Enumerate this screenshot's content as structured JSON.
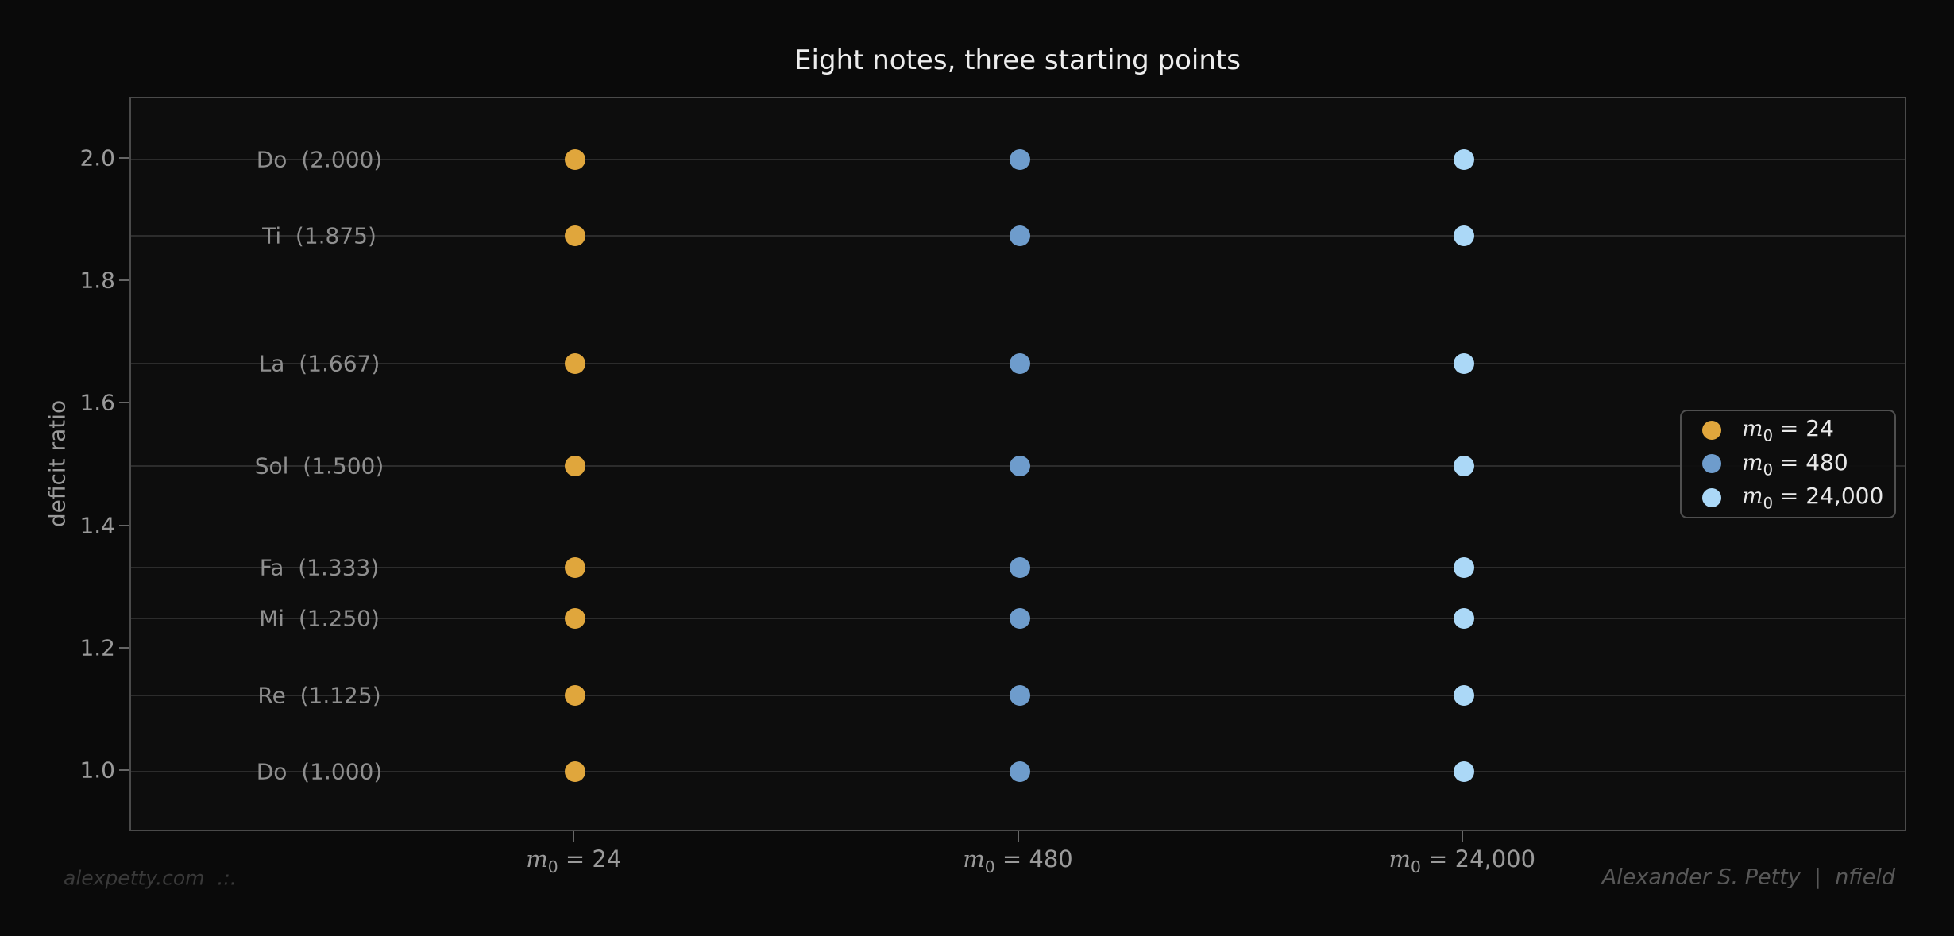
{
  "footer": {
    "left": "alexpetty.com  .:.",
    "right": "Alexander S. Petty  |  nfield"
  },
  "colors": {
    "background": "#0a0a0a",
    "axes_background": "#0d0d0d",
    "frame": "#4a4a4a",
    "gridline": "#2c2c2c",
    "tick_label": "#9a9a9a",
    "note_label": "#8f8f8f",
    "title_text": "#ededed",
    "legend_text": "#e8e8e8",
    "series_m0_24": "#E0A63C",
    "series_m0_480": "#6E9CCC",
    "series_m0_24000": "#ABD8F7"
  },
  "chart_data": {
    "type": "scatter",
    "title": "Eight notes, three starting points",
    "xlabel": "",
    "ylabel": "deficit ratio",
    "ylim": [
      0.9,
      2.1
    ],
    "grid": "horizontal lines only at note ratios",
    "legend_position": "center right",
    "yticks": [
      {
        "value": 1.0,
        "label": "1.0"
      },
      {
        "value": 1.2,
        "label": "1.2"
      },
      {
        "value": 1.4,
        "label": "1.4"
      },
      {
        "value": 1.6,
        "label": "1.6"
      },
      {
        "value": 1.8,
        "label": "1.8"
      },
      {
        "value": 2.0,
        "label": "2.0"
      }
    ],
    "notes": [
      {
        "name": "Do",
        "ratio": 2.0,
        "row_label": "Do  (2.000)"
      },
      {
        "name": "Ti",
        "ratio": 1.875,
        "row_label": "Ti  (1.875)"
      },
      {
        "name": "La",
        "ratio": 1.667,
        "row_label": "La  (1.667)"
      },
      {
        "name": "Sol",
        "ratio": 1.5,
        "row_label": "Sol  (1.500)"
      },
      {
        "name": "Fa",
        "ratio": 1.333,
        "row_label": "Fa  (1.333)"
      },
      {
        "name": "Mi",
        "ratio": 1.25,
        "row_label": "Mi  (1.250)"
      },
      {
        "name": "Re",
        "ratio": 1.125,
        "row_label": "Re  (1.125)"
      },
      {
        "name": "Do",
        "ratio": 1.0,
        "row_label": "Do  (1.000)"
      }
    ],
    "series": [
      {
        "label": "m_0 = 24",
        "x_frac": 0.25,
        "color": "#E0A63C",
        "values": [
          2.0,
          1.875,
          1.667,
          1.5,
          1.333,
          1.25,
          1.125,
          1.0
        ]
      },
      {
        "label": "m_0 = 480",
        "x_frac": 0.5,
        "color": "#6E9CCC",
        "values": [
          2.0,
          1.875,
          1.667,
          1.5,
          1.333,
          1.25,
          1.125,
          1.0
        ]
      },
      {
        "label": "m_0 = 24,000",
        "x_frac": 0.75,
        "color": "#ABD8F7",
        "values": [
          2.0,
          1.875,
          1.667,
          1.5,
          1.333,
          1.25,
          1.125,
          1.0
        ]
      }
    ],
    "x_tick_labels": [
      "m_0 = 24",
      "m_0 = 480",
      "m_0 = 24,000"
    ],
    "legend_entries": [
      {
        "label": "m_0 = 24",
        "color": "#E0A63C"
      },
      {
        "label": "m_0 = 480",
        "color": "#6E9CCC"
      },
      {
        "label": "m_0 = 24,000",
        "color": "#ABD8F7"
      }
    ]
  }
}
